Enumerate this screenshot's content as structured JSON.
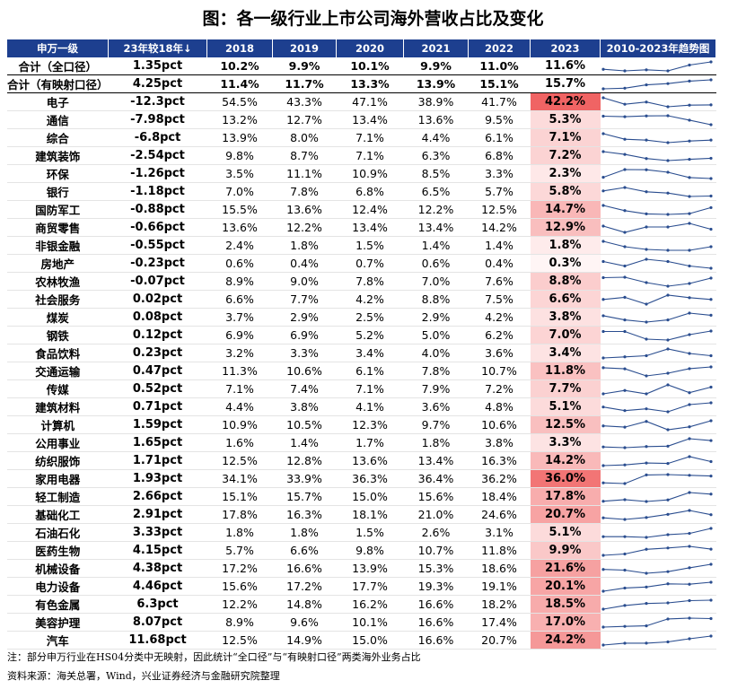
{
  "title": "图：各一级行业上市公司海外营收占比及变化",
  "colors": {
    "header_bg": "#1d3f8f",
    "heat_max": "#f06464",
    "heat_min": "#fff5f5",
    "spark_line": "#2a4d8f"
  },
  "note": "注：部分申万行业在HS04分类中无映射，因此统计“全口径”与“有映射口径”两类海外业务占比",
  "source": "资料来源：海关总署，Wind，兴业证券经济与金融研究院整理",
  "chart_data": {
    "type": "table",
    "columns": [
      "申万一级",
      "23年较18年↓",
      "2018",
      "2019",
      "2020",
      "2021",
      "2022",
      "2023",
      "2010-2023年趋势图"
    ],
    "summary_rows": [
      {
        "name": "合计（全口径）",
        "change": "1.35pct",
        "values": [
          "10.2%",
          "9.9%",
          "10.1%",
          "9.9%",
          "11.0%",
          "11.6%"
        ]
      },
      {
        "name": "合计（有映射口径）",
        "change": "4.25pct",
        "values": [
          "11.4%",
          "11.7%",
          "13.3%",
          "13.9%",
          "15.1%",
          "15.7%"
        ]
      }
    ],
    "rows": [
      {
        "name": "电子",
        "change": "-12.3pct",
        "values": [
          "54.5%",
          "43.3%",
          "47.1%",
          "38.9%",
          "41.7%",
          "42.2%"
        ]
      },
      {
        "name": "通信",
        "change": "-7.98pct",
        "values": [
          "13.2%",
          "12.7%",
          "13.4%",
          "13.6%",
          "9.5%",
          "5.3%"
        ]
      },
      {
        "name": "综合",
        "change": "-6.8pct",
        "values": [
          "13.9%",
          "8.0%",
          "7.1%",
          "4.4%",
          "6.1%",
          "7.1%"
        ]
      },
      {
        "name": "建筑装饰",
        "change": "-2.54pct",
        "values": [
          "9.8%",
          "8.7%",
          "7.1%",
          "6.3%",
          "6.8%",
          "7.2%"
        ]
      },
      {
        "name": "环保",
        "change": "-1.26pct",
        "values": [
          "3.5%",
          "11.1%",
          "10.9%",
          "8.5%",
          "3.3%",
          "2.3%"
        ]
      },
      {
        "name": "银行",
        "change": "-1.18pct",
        "values": [
          "7.0%",
          "7.8%",
          "6.8%",
          "6.5%",
          "5.7%",
          "5.8%"
        ]
      },
      {
        "name": "国防军工",
        "change": "-0.88pct",
        "values": [
          "15.5%",
          "13.6%",
          "12.4%",
          "12.2%",
          "12.5%",
          "14.7%"
        ]
      },
      {
        "name": "商贸零售",
        "change": "-0.66pct",
        "values": [
          "13.6%",
          "12.2%",
          "13.4%",
          "13.4%",
          "14.2%",
          "12.9%"
        ]
      },
      {
        "name": "非银金融",
        "change": "-0.55pct",
        "values": [
          "2.4%",
          "1.8%",
          "1.5%",
          "1.4%",
          "1.4%",
          "1.8%"
        ]
      },
      {
        "name": "房地产",
        "change": "-0.23pct",
        "values": [
          "0.6%",
          "0.4%",
          "0.7%",
          "0.6%",
          "0.4%",
          "0.3%"
        ]
      },
      {
        "name": "农林牧渔",
        "change": "-0.07pct",
        "values": [
          "8.9%",
          "9.0%",
          "7.8%",
          "7.0%",
          "7.6%",
          "8.8%"
        ]
      },
      {
        "name": "社会服务",
        "change": "0.02pct",
        "values": [
          "6.6%",
          "7.7%",
          "4.2%",
          "8.8%",
          "7.5%",
          "6.6%"
        ]
      },
      {
        "name": "煤炭",
        "change": "0.08pct",
        "values": [
          "3.7%",
          "2.9%",
          "2.5%",
          "2.9%",
          "4.2%",
          "3.8%"
        ]
      },
      {
        "name": "钢铁",
        "change": "0.12pct",
        "values": [
          "6.9%",
          "6.9%",
          "5.2%",
          "5.0%",
          "6.2%",
          "7.0%"
        ]
      },
      {
        "name": "食品饮料",
        "change": "0.23pct",
        "values": [
          "3.2%",
          "3.3%",
          "3.4%",
          "4.0%",
          "3.6%",
          "3.4%"
        ]
      },
      {
        "name": "交通运输",
        "change": "0.47pct",
        "values": [
          "11.3%",
          "10.6%",
          "6.1%",
          "7.8%",
          "10.7%",
          "11.8%"
        ]
      },
      {
        "name": "传媒",
        "change": "0.52pct",
        "values": [
          "7.1%",
          "7.4%",
          "7.1%",
          "7.9%",
          "7.2%",
          "7.7%"
        ]
      },
      {
        "name": "建筑材料",
        "change": "0.71pct",
        "values": [
          "4.4%",
          "3.8%",
          "4.1%",
          "3.6%",
          "4.8%",
          "5.1%"
        ]
      },
      {
        "name": "计算机",
        "change": "1.59pct",
        "values": [
          "10.9%",
          "10.5%",
          "12.3%",
          "9.7%",
          "10.6%",
          "12.5%"
        ]
      },
      {
        "name": "公用事业",
        "change": "1.65pct",
        "values": [
          "1.6%",
          "1.4%",
          "1.7%",
          "1.8%",
          "3.8%",
          "3.3%"
        ]
      },
      {
        "name": "纺织服饰",
        "change": "1.71pct",
        "values": [
          "12.5%",
          "12.8%",
          "13.6%",
          "13.4%",
          "16.3%",
          "14.2%"
        ]
      },
      {
        "name": "家用电器",
        "change": "1.93pct",
        "values": [
          "34.1%",
          "33.9%",
          "36.3%",
          "36.4%",
          "36.2%",
          "36.0%"
        ]
      },
      {
        "name": "轻工制造",
        "change": "2.66pct",
        "values": [
          "15.1%",
          "15.7%",
          "15.0%",
          "15.6%",
          "18.4%",
          "17.8%"
        ]
      },
      {
        "name": "基础化工",
        "change": "2.91pct",
        "values": [
          "17.8%",
          "16.3%",
          "18.1%",
          "21.0%",
          "24.6%",
          "20.7%"
        ]
      },
      {
        "name": "石油石化",
        "change": "3.33pct",
        "values": [
          "1.8%",
          "1.8%",
          "1.5%",
          "2.6%",
          "3.1%",
          "5.1%"
        ]
      },
      {
        "name": "医药生物",
        "change": "4.15pct",
        "values": [
          "5.7%",
          "6.6%",
          "9.8%",
          "10.7%",
          "11.8%",
          "9.9%"
        ]
      },
      {
        "name": "机械设备",
        "change": "4.38pct",
        "values": [
          "17.2%",
          "16.6%",
          "13.9%",
          "15.3%",
          "18.6%",
          "21.6%"
        ]
      },
      {
        "name": "电力设备",
        "change": "4.46pct",
        "values": [
          "15.6%",
          "17.2%",
          "17.7%",
          "19.3%",
          "19.1%",
          "20.1%"
        ]
      },
      {
        "name": "有色金属",
        "change": "6.3pct",
        "values": [
          "12.2%",
          "14.8%",
          "16.2%",
          "16.6%",
          "18.2%",
          "18.5%"
        ]
      },
      {
        "name": "美容护理",
        "change": "8.07pct",
        "values": [
          "8.9%",
          "9.6%",
          "10.1%",
          "16.6%",
          "17.4%",
          "17.0%"
        ]
      },
      {
        "name": "汽车",
        "change": "11.68pct",
        "values": [
          "12.5%",
          "14.9%",
          "15.0%",
          "16.6%",
          "20.7%",
          "24.2%"
        ]
      }
    ]
  }
}
